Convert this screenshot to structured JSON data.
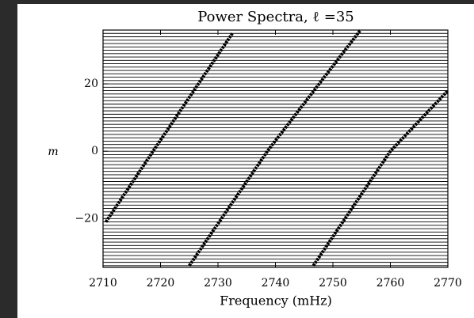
{
  "chart_data": {
    "type": "line",
    "title": "Power Spectra, ℓ =35",
    "x_label": "Frequency (mHz)",
    "y_label": "m",
    "xlim": [
      2710,
      2770
    ],
    "ylim": [
      -34.5,
      36
    ],
    "xticks": [
      2710,
      2720,
      2730,
      2740,
      2750,
      2760,
      2770
    ],
    "yticks": [
      {
        "value": -20,
        "label": "−20"
      },
      0,
      20
    ],
    "orders": [
      -34,
      -33,
      -32,
      -31,
      -30,
      -29,
      -28,
      -27,
      -26,
      -25,
      -24,
      -23,
      -22,
      -21,
      -20,
      -19,
      -18,
      -17,
      -16,
      -15,
      -14,
      -13,
      -12,
      -11,
      -10,
      -9,
      -8,
      -7,
      -6,
      -5,
      -4,
      -3,
      -2,
      -1,
      0,
      1,
      2,
      3,
      4,
      5,
      6,
      7,
      8,
      9,
      10,
      11,
      12,
      13,
      14,
      15,
      16,
      17,
      18,
      19,
      20,
      21,
      22,
      23,
      24,
      25,
      26,
      27,
      28,
      29,
      30,
      31,
      32,
      33,
      34,
      35
    ],
    "series": [
      {
        "color": "#000000",
        "x": [
          2710.5,
          2718.7,
          2732.5
        ],
        "y": [
          -21,
          0,
          35
        ]
      },
      {
        "color": "#000000",
        "x": [
          2725,
          2738.6,
          2754.8
        ],
        "y": [
          -34,
          0,
          36
        ]
      },
      {
        "color": "#000000",
        "x": [
          2746.6,
          2760,
          2770
        ],
        "y": [
          -34,
          0,
          18
        ]
      }
    ]
  }
}
